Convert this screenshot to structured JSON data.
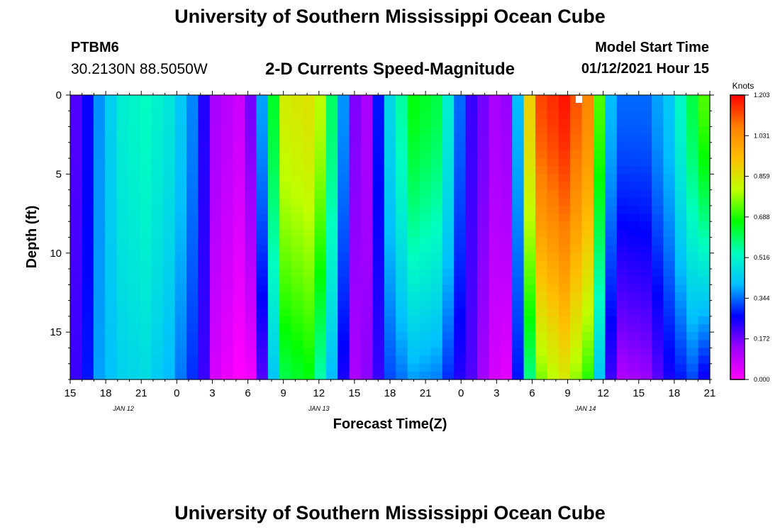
{
  "header": {
    "title": "University of Southern Mississippi Ocean Cube",
    "station_id": "PTBM6",
    "coordinates": "30.2130N 88.5050W",
    "plot_title": "2-D Currents Speed-Magnitude",
    "model_start_label": "Model Start Time",
    "model_start_value": "01/12/2021 Hour 15"
  },
  "footer": {
    "title": "University of Southern Mississippi Ocean Cube"
  },
  "chart_data": {
    "type": "heatmap",
    "xlabel": "Forecast Time(Z)",
    "ylabel": "Depth (ft)",
    "x_tick_labels": [
      "15",
      "18",
      "21",
      "0",
      "3",
      "6",
      "9",
      "12",
      "15",
      "18",
      "21",
      "0",
      "3",
      "6",
      "9",
      "12",
      "15",
      "18",
      "21"
    ],
    "x_date_labels": [
      {
        "label": "JAN  12",
        "tick_index": 1.5
      },
      {
        "label": "JAN  13",
        "tick_index": 7
      },
      {
        "label": "JAN  14",
        "tick_index": 14.5
      }
    ],
    "hours_start": 15,
    "hours_step": 1,
    "hours_count": 55,
    "y_ticks": [
      0,
      5,
      10,
      15
    ],
    "ylim": [
      0,
      18
    ],
    "depth_levels": 36,
    "colorbar": {
      "title": "Knots",
      "tick_labels": [
        "1.203",
        "1.031",
        "0.859",
        "0.688",
        "0.516",
        "0.344",
        "0.172",
        "0.000"
      ],
      "vmin": 0.0,
      "vmax": 1.203,
      "colors": [
        "#ff00ff",
        "#9f00ff",
        "#0000ff",
        "#00bfff",
        "#00ffbf",
        "#00ff00",
        "#bfff00",
        "#ffbf00",
        "#ff7f00",
        "#ff0000"
      ]
    },
    "speed_keyframes": [
      {
        "hour": 0,
        "surface": 0.2,
        "bottom": 0.22
      },
      {
        "hour": 1,
        "surface": 0.26,
        "bottom": 0.28
      },
      {
        "hour": 2,
        "surface": 0.37,
        "bottom": 0.38
      },
      {
        "hour": 4,
        "surface": 0.5,
        "bottom": 0.44
      },
      {
        "hour": 6,
        "surface": 0.53,
        "bottom": 0.46
      },
      {
        "hour": 8,
        "surface": 0.48,
        "bottom": 0.4
      },
      {
        "hour": 10,
        "surface": 0.36,
        "bottom": 0.3
      },
      {
        "hour": 11,
        "surface": 0.24,
        "bottom": 0.22
      },
      {
        "hour": 12,
        "surface": 0.12,
        "bottom": 0.06
      },
      {
        "hour": 14,
        "surface": 0.07,
        "bottom": 0.0
      },
      {
        "hour": 15,
        "surface": 0.17,
        "bottom": 0.02
      },
      {
        "hour": 16,
        "surface": 0.38,
        "bottom": 0.2
      },
      {
        "hour": 17,
        "surface": 0.64,
        "bottom": 0.42
      },
      {
        "hour": 18,
        "surface": 0.84,
        "bottom": 0.62
      },
      {
        "hour": 20,
        "surface": 0.86,
        "bottom": 0.66
      },
      {
        "hour": 21,
        "surface": 0.8,
        "bottom": 0.55
      },
      {
        "hour": 22,
        "surface": 0.6,
        "bottom": 0.4
      },
      {
        "hour": 23,
        "surface": 0.37,
        "bottom": 0.25
      },
      {
        "hour": 24,
        "surface": 0.16,
        "bottom": 0.12
      },
      {
        "hour": 25,
        "surface": 0.12,
        "bottom": 0.15
      },
      {
        "hour": 26,
        "surface": 0.28,
        "bottom": 0.22
      },
      {
        "hour": 27,
        "surface": 0.45,
        "bottom": 0.32
      },
      {
        "hour": 29,
        "surface": 0.66,
        "bottom": 0.38
      },
      {
        "hour": 31,
        "surface": 0.62,
        "bottom": 0.36
      },
      {
        "hour": 32,
        "surface": 0.5,
        "bottom": 0.3
      },
      {
        "hour": 33,
        "surface": 0.34,
        "bottom": 0.24
      },
      {
        "hour": 34,
        "surface": 0.22,
        "bottom": 0.2
      },
      {
        "hour": 36,
        "surface": 0.12,
        "bottom": 0.06
      },
      {
        "hour": 37,
        "surface": 0.14,
        "bottom": 0.04
      },
      {
        "hour": 38,
        "surface": 0.4,
        "bottom": 0.28
      },
      {
        "hour": 39,
        "surface": 0.9,
        "bottom": 0.58
      },
      {
        "hour": 40,
        "surface": 1.13,
        "bottom": 0.76
      },
      {
        "hour": 42,
        "surface": 1.18,
        "bottom": 0.85
      },
      {
        "hour": 44,
        "surface": 1.05,
        "bottom": 0.7
      },
      {
        "hour": 45,
        "surface": 0.72,
        "bottom": 0.42
      },
      {
        "hour": 46,
        "surface": 0.4,
        "bottom": 0.22
      },
      {
        "hour": 47,
        "surface": 0.34,
        "bottom": 0.12
      },
      {
        "hour": 49,
        "surface": 0.34,
        "bottom": 0.14
      },
      {
        "hour": 51,
        "surface": 0.42,
        "bottom": 0.25
      },
      {
        "hour": 53,
        "surface": 0.62,
        "bottom": 0.32
      },
      {
        "hour": 54,
        "surface": 0.72,
        "bottom": 0.26
      }
    ]
  }
}
